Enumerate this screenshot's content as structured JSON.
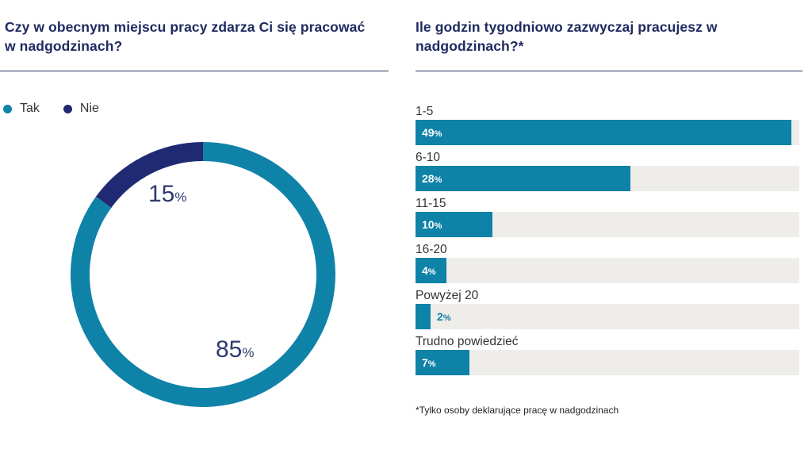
{
  "left_title": "Czy w obecnym miejscu pracy zdarza Ci się pracować w nadgodzinach?",
  "right_title": "Ile godzin tygodniowo zazwyczaj pracujesz w nadgodzinach?*",
  "footnote": "*Tylko osoby deklarujące pracę w nadgodzinach",
  "colors": {
    "teal": "#0f82a8",
    "navy": "#1f2a72",
    "track": "#efedea",
    "title": "#1f2a60"
  },
  "chart_data": [
    {
      "type": "pie",
      "title": "Czy w obecnym miejscu pracy zdarza Ci się pracować w nadgodzinach?",
      "legend": [
        "Tak",
        "Nie"
      ],
      "legend_placement": "top-left",
      "slices": [
        {
          "label": "Tak",
          "value": 85,
          "display": "85",
          "unit": "%",
          "color": "#0f82a8"
        },
        {
          "label": "Nie",
          "value": 15,
          "display": "15",
          "unit": "%",
          "color": "#1f2a72"
        }
      ]
    },
    {
      "type": "bar",
      "orientation": "horizontal",
      "title": "Ile godzin tygodniowo zazwyczaj pracujesz w nadgodzinach?*",
      "categories": [
        "1-5",
        "6-10",
        "11-15",
        "16-20",
        "Powyżej 20",
        "Trudno powiedzieć"
      ],
      "values": [
        49,
        28,
        10,
        4,
        2,
        7
      ],
      "unit": "%",
      "xlim": [
        0,
        50
      ]
    }
  ]
}
